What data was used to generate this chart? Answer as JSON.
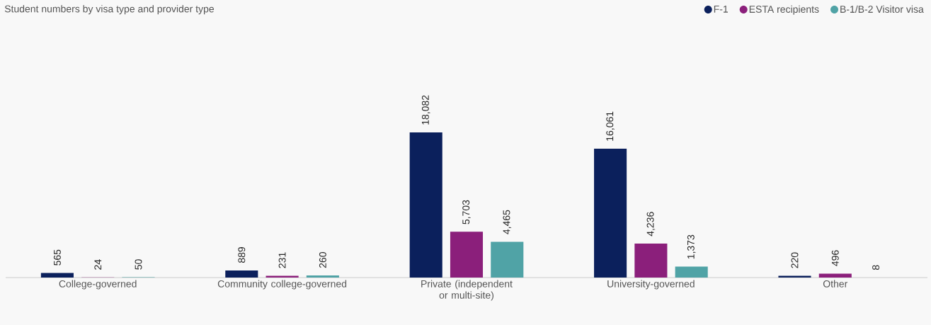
{
  "chart_data": {
    "type": "bar",
    "title": "Student numbers by visa type and provider type",
    "categories": [
      "College-governed",
      "Community college-governed",
      "Private (independent or multi-site)",
      "University-governed",
      "Other"
    ],
    "series": [
      {
        "name": "F-1",
        "color": "#0b205c",
        "values": [
          565,
          889,
          18082,
          16061,
          220
        ],
        "value_labels": [
          "565",
          "889",
          "18,082",
          "16,061",
          "220"
        ]
      },
      {
        "name": "ESTA recipients",
        "color": "#8b1f7b",
        "values": [
          24,
          231,
          5703,
          4236,
          496
        ],
        "value_labels": [
          "24",
          "231",
          "5,703",
          "4,236",
          "496"
        ]
      },
      {
        "name": "B-1/B-2 Visitor visa",
        "color": "#50a3a6",
        "values": [
          50,
          260,
          4465,
          1373,
          8
        ],
        "value_labels": [
          "50",
          "260",
          "4,465",
          "1,373",
          "8"
        ]
      }
    ],
    "legend": "top right"
  }
}
